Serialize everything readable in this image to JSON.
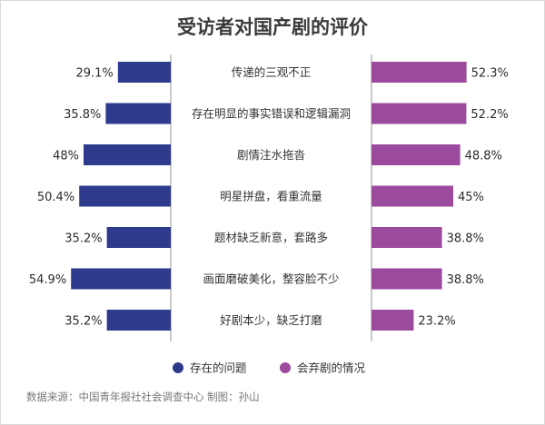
{
  "chart_data": {
    "type": "bar",
    "title": "受访者对国产剧的评价",
    "categories": [
      "传递的三观不正",
      "存在明显的事实错误和逻辑漏洞",
      "剧情注水拖沓",
      "明星拼盘，看重流量",
      "题材缺乏新意，套路多",
      "画面磨破美化，整容脸不少",
      "好剧本少，缺乏打磨"
    ],
    "series": [
      {
        "name": "存在的问题",
        "color": "#2e3a8c",
        "values": [
          29.1,
          35.8,
          48,
          50.4,
          35.2,
          54.9,
          35.2
        ],
        "labels": [
          "29.1%",
          "35.8%",
          "48%",
          "50.4%",
          "35.2%",
          "54.9%",
          "35.2%"
        ]
      },
      {
        "name": "会弃剧的情况",
        "color": "#9b4a9e",
        "values": [
          52.3,
          52.2,
          48.8,
          45,
          38.8,
          38.8,
          23.2
        ],
        "labels": [
          "52.3%",
          "52.2%",
          "48.8%",
          "45%",
          "38.8%",
          "38.8%",
          "23.2%"
        ]
      }
    ],
    "unit": "%",
    "legend_position": "bottom-center",
    "grid": false
  },
  "source": "数据来源：中国青年报社社会调查中心  制图：孙山"
}
